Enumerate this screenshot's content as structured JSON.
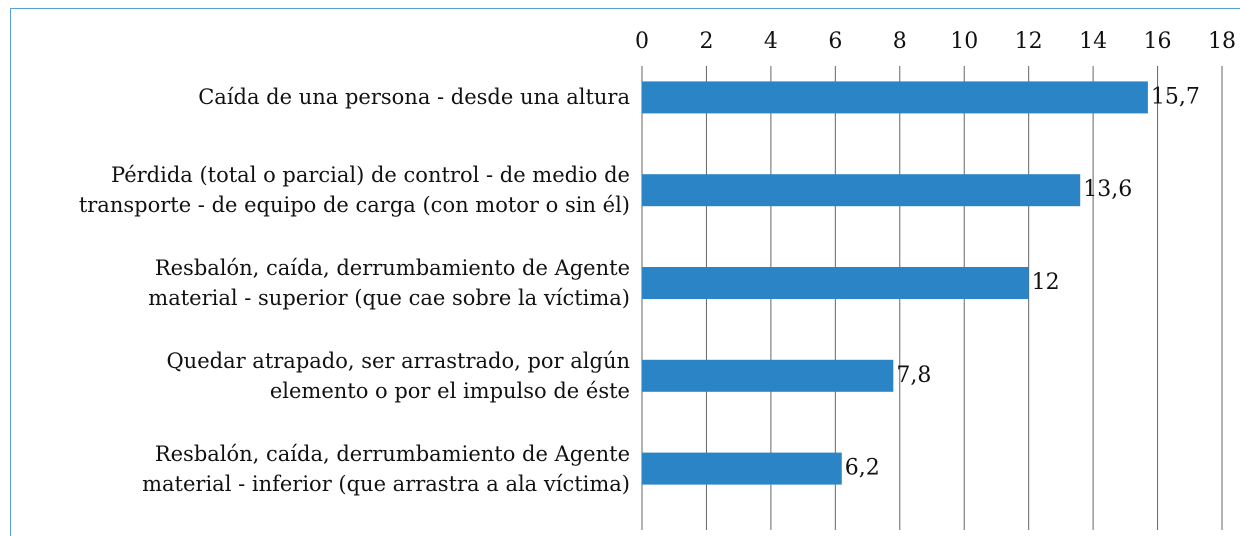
{
  "chart_data": {
    "type": "bar",
    "orientation": "horizontal",
    "categories": [
      "Caída de una persona - desde una altura",
      "Pérdida (total o parcial) de control - de medio de\ntransporte - de equipo de carga (con motor o sin él)",
      "Resbalón, caída, derrumbamiento de Agente\nmaterial - superior (que cae sobre la víctima)",
      "Quedar atrapado, ser arrastrado, por algún\nelemento o por el impulso de éste",
      "Resbalón, caída, derrumbamiento de Agente\nmaterial - inferior (que arrastra a ala víctima)"
    ],
    "values": [
      15.7,
      13.6,
      12,
      7.8,
      6.2
    ],
    "value_labels": [
      "15,7",
      "13,6",
      "12",
      "7,8",
      "6,2"
    ],
    "color": "#2b84c6",
    "xlim": [
      0,
      18
    ],
    "xticks": [
      0,
      2,
      4,
      6,
      8,
      10,
      12,
      14,
      16,
      18
    ],
    "grid": true
  }
}
